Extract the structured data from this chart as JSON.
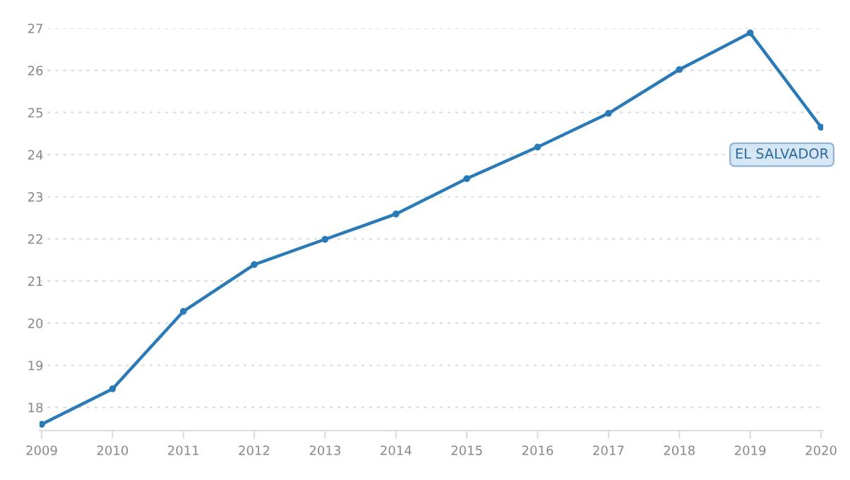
{
  "chart_data": {
    "type": "line",
    "categories": [
      "2009",
      "2010",
      "2011",
      "2012",
      "2013",
      "2014",
      "2015",
      "2016",
      "2017",
      "2018",
      "2019",
      "2020"
    ],
    "series": [
      {
        "name": "EL SALVADOR",
        "color": "#2a7ab8",
        "values": [
          17.6,
          18.44,
          20.28,
          21.39,
          21.99,
          22.59,
          23.43,
          24.18,
          24.98,
          26.02,
          26.89,
          24.65
        ]
      }
    ],
    "ylim": [
      17.45,
      27
    ],
    "yticks": [
      18,
      19,
      20,
      21,
      22,
      23,
      24,
      25,
      26,
      27
    ],
    "grid": "y",
    "marker": "circle",
    "line_style": "solid"
  }
}
